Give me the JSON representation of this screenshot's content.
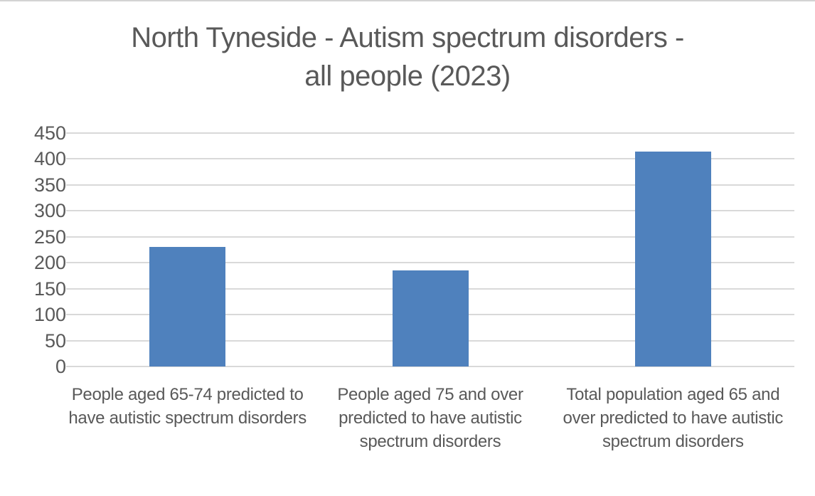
{
  "chart_data": {
    "type": "bar",
    "title": "North Tyneside - Autism spectrum disorders - all people (2023)",
    "title_lines": [
      "North Tyneside - Autism spectrum disorders -",
      "all people (2023)"
    ],
    "categories": [
      "People aged 65-74 predicted to have autistic spectrum disorders",
      "People aged 75 and over predicted to have autistic spectrum disorders",
      "Total population aged 65 and over predicted to have autistic spectrum disorders"
    ],
    "values": [
      230,
      185,
      415
    ],
    "xlabel": "",
    "ylabel": "",
    "ylim": [
      0,
      450
    ],
    "yticks": [
      0,
      50,
      100,
      150,
      200,
      250,
      300,
      350,
      400,
      450
    ],
    "grid": true,
    "legend": null,
    "colors": {
      "bar": "#4F81BD",
      "gridline": "#D9D9D9",
      "text": "#595959",
      "background": "#FFFFFF"
    }
  }
}
